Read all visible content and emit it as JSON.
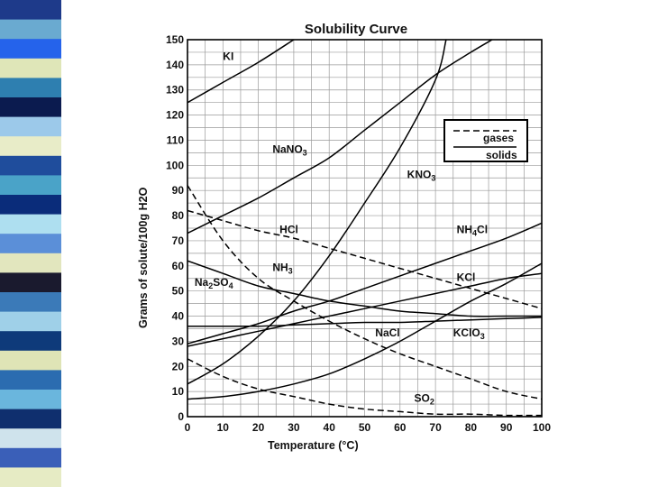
{
  "slide": {
    "stripe_colors": [
      "#1e3a8a",
      "#6aaad0",
      "#2563eb",
      "#dfe6b8",
      "#2e7fb0",
      "#0b1b4f",
      "#9cc9ea",
      "#e8ecc8",
      "#1f4d9c",
      "#4aa3c8",
      "#0a2c7a",
      "#aedff0",
      "#5b8fd8",
      "#e2e6be",
      "#1a1a2e",
      "#3b7ab8",
      "#9fd0e8",
      "#0e3a7a",
      "#dfe4b6",
      "#2b6cb0",
      "#6ab6dd",
      "#0f2f6e",
      "#cfe3ec",
      "#3a5fb8",
      "#e6ebc4"
    ]
  },
  "chart_data": {
    "type": "line",
    "title": "Solubility Curve",
    "xlabel": "Temperature (°C)",
    "ylabel": "Grams of solute/100g H2O",
    "xlim": [
      0,
      100
    ],
    "ylim": [
      0,
      150
    ],
    "xticks": [
      0,
      10,
      20,
      30,
      40,
      50,
      60,
      70,
      80,
      90,
      100
    ],
    "yticks": [
      0,
      10,
      20,
      30,
      40,
      50,
      60,
      70,
      80,
      90,
      100,
      110,
      120,
      130,
      140,
      150
    ],
    "legend": {
      "position": "right",
      "gases": "gases",
      "solids": "solids"
    },
    "series": [
      {
        "name": "KI",
        "style": "solid",
        "label_at": [
          10,
          142
        ],
        "points": [
          [
            0,
            125
          ],
          [
            10,
            133
          ],
          [
            20,
            141
          ],
          [
            30,
            150
          ]
        ]
      },
      {
        "name": "NaNO3",
        "style": "solid",
        "label_at": [
          24,
          105
        ],
        "points": [
          [
            0,
            73
          ],
          [
            10,
            80
          ],
          [
            20,
            87
          ],
          [
            30,
            95
          ],
          [
            40,
            103
          ],
          [
            50,
            114
          ],
          [
            60,
            125
          ],
          [
            70,
            136
          ],
          [
            80,
            145
          ],
          [
            86,
            150
          ]
        ]
      },
      {
        "name": "KNO3",
        "style": "solid",
        "label_at": [
          62,
          95
        ],
        "points": [
          [
            0,
            13
          ],
          [
            10,
            21
          ],
          [
            20,
            32
          ],
          [
            30,
            46
          ],
          [
            40,
            64
          ],
          [
            50,
            85
          ],
          [
            60,
            107
          ],
          [
            70,
            134
          ],
          [
            73,
            150
          ]
        ]
      },
      {
        "name": "NH4Cl",
        "style": "solid",
        "label_at": [
          76,
          73
        ],
        "points": [
          [
            0,
            29
          ],
          [
            10,
            33
          ],
          [
            20,
            37
          ],
          [
            30,
            42
          ],
          [
            40,
            46
          ],
          [
            50,
            51
          ],
          [
            60,
            56
          ],
          [
            70,
            61
          ],
          [
            80,
            66
          ],
          [
            90,
            71
          ],
          [
            100,
            77
          ]
        ]
      },
      {
        "name": "HCl",
        "style": "dashed",
        "label_at": [
          26,
          73
        ],
        "points": [
          [
            0,
            82
          ],
          [
            10,
            78
          ],
          [
            20,
            74
          ],
          [
            30,
            71
          ],
          [
            40,
            67
          ],
          [
            50,
            63
          ],
          [
            60,
            59
          ],
          [
            70,
            55
          ],
          [
            80,
            51
          ],
          [
            90,
            47
          ],
          [
            100,
            43
          ]
        ]
      },
      {
        "name": "NH3",
        "style": "dashed",
        "label_at": [
          24,
          58
        ],
        "points": [
          [
            0,
            92
          ],
          [
            10,
            70
          ],
          [
            20,
            55
          ],
          [
            30,
            46
          ],
          [
            40,
            38
          ],
          [
            50,
            31
          ],
          [
            60,
            25
          ],
          [
            70,
            20
          ],
          [
            80,
            15
          ],
          [
            90,
            10
          ],
          [
            100,
            7
          ]
        ]
      },
      {
        "name": "KCl",
        "style": "solid",
        "label_at": [
          76,
          54
        ],
        "points": [
          [
            0,
            28
          ],
          [
            10,
            31
          ],
          [
            20,
            34
          ],
          [
            30,
            37
          ],
          [
            40,
            40
          ],
          [
            50,
            43
          ],
          [
            60,
            46
          ],
          [
            70,
            49
          ],
          [
            80,
            52
          ],
          [
            90,
            55
          ],
          [
            100,
            57
          ]
        ]
      },
      {
        "name": "Na2SO4",
        "style": "solid",
        "label_at": [
          2,
          52
        ],
        "points": [
          [
            0,
            62
          ],
          [
            10,
            57
          ],
          [
            20,
            52
          ],
          [
            30,
            49
          ],
          [
            40,
            46
          ],
          [
            50,
            44
          ],
          [
            60,
            42
          ],
          [
            70,
            41
          ],
          [
            80,
            40
          ],
          [
            90,
            40
          ],
          [
            100,
            40
          ]
        ]
      },
      {
        "name": "NaCl",
        "style": "solid",
        "label_at": [
          53,
          32
        ],
        "points": [
          [
            0,
            36
          ],
          [
            10,
            36
          ],
          [
            20,
            36
          ],
          [
            30,
            36.5
          ],
          [
            40,
            37
          ],
          [
            50,
            37.5
          ],
          [
            60,
            37.5
          ],
          [
            70,
            38
          ],
          [
            80,
            38.5
          ],
          [
            90,
            39
          ],
          [
            100,
            39.5
          ]
        ]
      },
      {
        "name": "KClO3",
        "style": "solid",
        "label_at": [
          75,
          32
        ],
        "points": [
          [
            0,
            7
          ],
          [
            10,
            8
          ],
          [
            20,
            10
          ],
          [
            30,
            13
          ],
          [
            40,
            17
          ],
          [
            50,
            23
          ],
          [
            60,
            30
          ],
          [
            70,
            38
          ],
          [
            80,
            46
          ],
          [
            90,
            53
          ],
          [
            100,
            61
          ]
        ]
      },
      {
        "name": "SO2",
        "style": "dashed",
        "label_at": [
          64,
          6
        ],
        "points": [
          [
            0,
            23
          ],
          [
            10,
            16
          ],
          [
            20,
            11
          ],
          [
            30,
            8
          ],
          [
            40,
            5
          ],
          [
            50,
            3
          ],
          [
            60,
            2
          ],
          [
            70,
            1
          ],
          [
            80,
            1
          ],
          [
            90,
            0.5
          ],
          [
            100,
            0.5
          ]
        ]
      }
    ],
    "labels": {
      "KI": [
        "KI",
        ""
      ],
      "NaNO3": [
        "NaNO",
        "3"
      ],
      "KNO3": [
        "KNO",
        "3"
      ],
      "NH4Cl": [
        "NH",
        "4",
        "Cl"
      ],
      "HCl": [
        "HCl",
        ""
      ],
      "NH3": [
        "NH",
        "3"
      ],
      "KCl": [
        "KCl",
        ""
      ],
      "Na2SO4": [
        "Na",
        "2",
        "SO",
        "4"
      ],
      "NaCl": [
        "NaCl",
        ""
      ],
      "KClO3": [
        "KClO",
        "3"
      ],
      "SO2": [
        "SO",
        "2"
      ]
    }
  }
}
